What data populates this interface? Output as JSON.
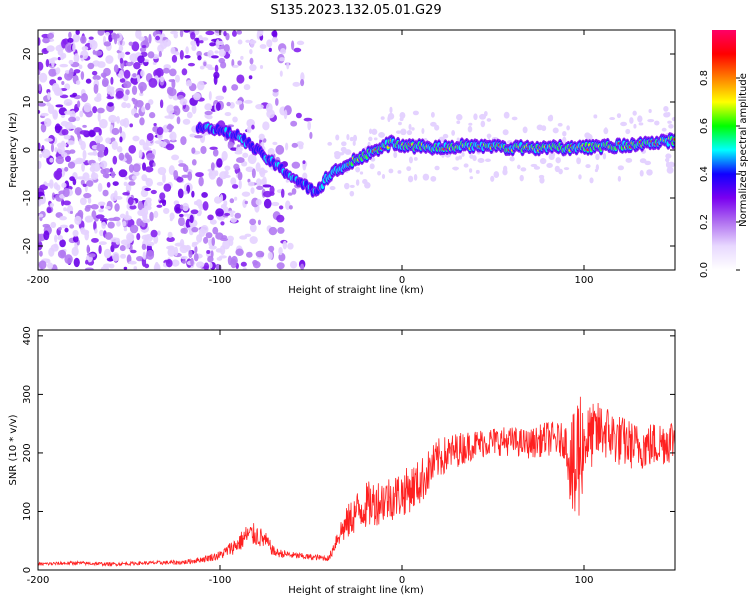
{
  "title": "S135.2023.132.05.01.G29",
  "chart_data": [
    {
      "type": "heatmap",
      "title": "",
      "xlabel": "Height of straight line (km)",
      "ylabel": "Frequency (Hz)",
      "xlim": [
        -200,
        150
      ],
      "ylim": [
        -25,
        25
      ],
      "xticks": [
        -200,
        -100,
        0,
        100
      ],
      "yticks": [
        -20,
        -10,
        0,
        10,
        20
      ],
      "grid": false,
      "colorbar": {
        "label": "Normalized spectral amplitude",
        "range": [
          0,
          1
        ],
        "ticks": [
          "0.0",
          "0.2",
          "0.4",
          "0.6",
          "0.8"
        ],
        "colors": [
          "#ffffff",
          "#e8d8ff",
          "#b070f0",
          "#7a00f0",
          "#1000ff",
          "#00ffff",
          "#00ff00",
          "#ffff00",
          "#ff8000",
          "#ff0000",
          "#ff0066"
        ]
      },
      "ridge": {
        "x": [
          -110,
          -90,
          -70,
          -55,
          -47,
          -42,
          -35,
          -25,
          -15,
          -5,
          0,
          20,
          40,
          60,
          80,
          100,
          120,
          150
        ],
        "y": [
          5,
          3,
          -3,
          -7,
          -9,
          -6,
          -4,
          -2,
          0,
          1.5,
          1,
          0.5,
          1,
          0.5,
          0.5,
          0.5,
          1,
          2
        ]
      }
    },
    {
      "type": "line",
      "title": "",
      "xlabel": "Height of straight line (km)",
      "ylabel": "SNR (10 * v/v)",
      "xlim": [
        -200,
        150
      ],
      "ylim": [
        0,
        410
      ],
      "xticks": [
        -200,
        -100,
        0,
        100
      ],
      "yticks": [
        0,
        100,
        200,
        300,
        400
      ],
      "grid": false,
      "series": [
        {
          "color": "#ff2020",
          "x": [
            -200,
            -180,
            -160,
            -140,
            -120,
            -110,
            -100,
            -90,
            -85,
            -80,
            -75,
            -70,
            -60,
            -50,
            -40,
            -35,
            -30,
            -25,
            -20,
            -10,
            0,
            10,
            20,
            30,
            40,
            50,
            60,
            70,
            80,
            90,
            95,
            97,
            100,
            110,
            120,
            130,
            140,
            150
          ],
          "y": [
            10,
            12,
            10,
            12,
            13,
            18,
            25,
            45,
            60,
            60,
            50,
            30,
            25,
            22,
            20,
            60,
            80,
            100,
            110,
            120,
            130,
            150,
            190,
            205,
            215,
            220,
            220,
            215,
            225,
            220,
            150,
            200,
            220,
            240,
            220,
            210,
            215,
            225
          ],
          "noise": [
            3,
            3,
            3,
            3,
            4,
            5,
            8,
            15,
            20,
            20,
            15,
            8,
            6,
            5,
            5,
            20,
            30,
            35,
            40,
            40,
            40,
            40,
            35,
            30,
            25,
            25,
            25,
            25,
            30,
            30,
            120,
            150,
            60,
            50,
            45,
            40,
            40,
            40
          ]
        }
      ]
    }
  ]
}
